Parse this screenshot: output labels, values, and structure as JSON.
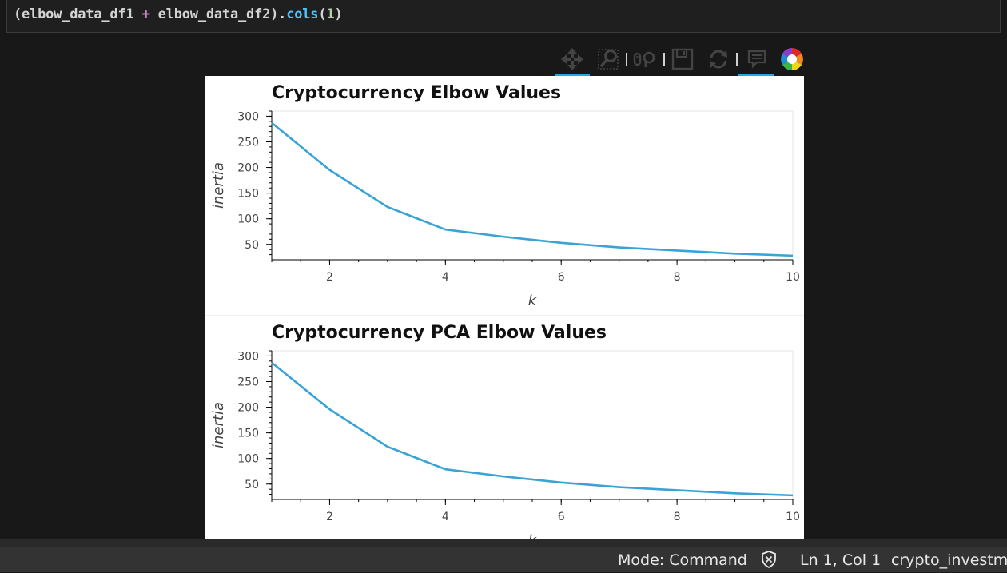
{
  "code_cell": {
    "tokens": {
      "part1": "(elbow_data_df1 ",
      "op": "+",
      "part2": " elbow_data_df2).",
      "method": "cols",
      "paren_open": "(",
      "arg": "1",
      "paren_close": ")"
    }
  },
  "toolbar": {
    "tools": [
      {
        "icon": "pan-icon",
        "active": true
      },
      {
        "icon": "box-zoom-icon",
        "active": false
      },
      {
        "icon": "wheel-zoom-icon",
        "active": false
      },
      {
        "icon": "save-icon",
        "active": false
      },
      {
        "icon": "reset-icon",
        "active": false
      },
      {
        "icon": "hover-icon",
        "active": true
      },
      {
        "icon": "bokeh-logo-icon",
        "active": false
      }
    ]
  },
  "plots": [
    {
      "title": "Cryptocurrency Elbow Values",
      "chart_data": {
        "type": "line",
        "x": [
          1,
          2,
          3,
          4,
          5,
          6,
          7,
          8,
          9,
          10
        ],
        "y": [
          287,
          195,
          123,
          79,
          65,
          53,
          44,
          38,
          32,
          28
        ],
        "xlabel": "k",
        "ylabel": "inertia",
        "xlim": [
          1,
          10
        ],
        "ylim": [
          20,
          310
        ],
        "xticks": [
          "2",
          "4",
          "6",
          "8",
          "10"
        ],
        "yticks": [
          "300",
          "250",
          "200",
          "150",
          "100",
          "50"
        ],
        "line_color": "#3aa3d6",
        "grid": false
      }
    },
    {
      "title": "Cryptocurrency PCA Elbow Values",
      "chart_data": {
        "type": "line",
        "x": [
          1,
          2,
          3,
          4,
          5,
          6,
          7,
          8,
          9,
          10
        ],
        "y": [
          287,
          196,
          123,
          79,
          65,
          53,
          44,
          38,
          32,
          28
        ],
        "xlabel": "k",
        "ylabel": "inertia",
        "xlim": [
          1,
          10
        ],
        "ylim": [
          20,
          310
        ],
        "xticks": [
          "2",
          "4",
          "6",
          "8",
          "10"
        ],
        "yticks": [
          "300",
          "250",
          "200",
          "150",
          "100",
          "50"
        ],
        "line_color": "#3aa3d6",
        "grid": false
      }
    }
  ],
  "status_bar": {
    "mode": "Mode: Command",
    "position": "Ln 1, Col 1",
    "filename": "crypto_investments"
  }
}
